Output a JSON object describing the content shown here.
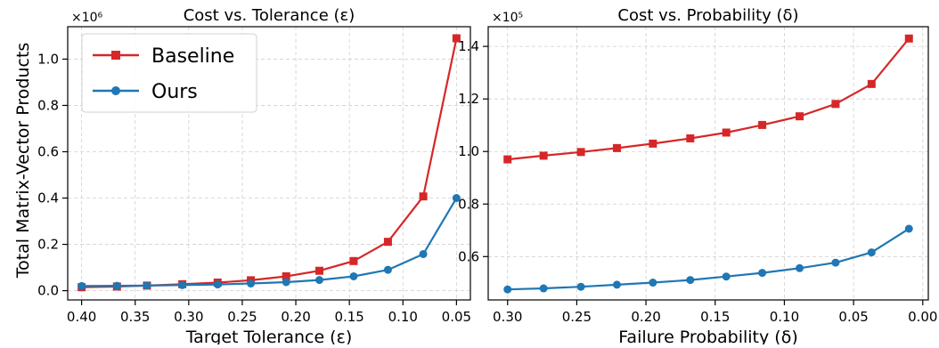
{
  "figure": {
    "ylabel": "Total Matrix-Vector Products"
  },
  "chart_data": [
    {
      "type": "line",
      "title": "Cost vs. Tolerance (ε)",
      "xlabel": "Target Tolerance (ε)",
      "ylabel": "Total Matrix-Vector Products",
      "x_axis_inverted": true,
      "xlim": [
        0.413,
        0.037
      ],
      "ylim": [
        -0.04,
        1.14
      ],
      "y_multiplier": "×10⁶",
      "x_ticks": [
        0.4,
        0.35,
        0.3,
        0.25,
        0.2,
        0.15,
        0.1,
        0.05
      ],
      "x_tick_labels": [
        "0.40",
        "0.35",
        "0.30",
        "0.25",
        "0.20",
        "0.15",
        "0.10",
        "0.05"
      ],
      "y_ticks": [
        0.0,
        0.2,
        0.4,
        0.6,
        0.8,
        1.0
      ],
      "y_tick_labels": [
        "0.0",
        "0.2",
        "0.4",
        "0.6",
        "0.8",
        "1.0"
      ],
      "grid": true,
      "legend": "top-left",
      "x": [
        0.4,
        0.367,
        0.339,
        0.306,
        0.273,
        0.242,
        0.209,
        0.178,
        0.146,
        0.114,
        0.081,
        0.05
      ],
      "series": [
        {
          "name": "Baseline",
          "color": "#d62728",
          "marker": "square",
          "values": [
            0.015,
            0.018,
            0.022,
            0.028,
            0.035,
            0.045,
            0.062,
            0.086,
            0.128,
            0.211,
            0.407,
            1.09
          ]
        },
        {
          "name": "Ours",
          "color": "#1f77b4",
          "marker": "circle",
          "values": [
            0.02,
            0.021,
            0.022,
            0.024,
            0.027,
            0.031,
            0.037,
            0.046,
            0.062,
            0.09,
            0.158,
            0.4
          ]
        }
      ]
    },
    {
      "type": "line",
      "title": "Cost vs. Probability (δ)",
      "xlabel": "Failure Probability (δ)",
      "ylabel": "",
      "x_axis_inverted": true,
      "xlim": [
        0.314,
        -0.004
      ],
      "ylim": [
        0.435,
        1.475
      ],
      "y_multiplier": "×10⁵",
      "x_ticks": [
        0.3,
        0.25,
        0.2,
        0.15,
        0.1,
        0.05,
        0.0
      ],
      "x_tick_labels": [
        "0.30",
        "0.25",
        "0.20",
        "0.15",
        "0.10",
        "0.05",
        "0.00"
      ],
      "y_ticks": [
        0.6,
        0.8,
        1.0,
        1.2,
        1.4
      ],
      "y_tick_labels": [
        "0.6",
        "0.8",
        "1.0",
        "1.2",
        "1.4"
      ],
      "grid": true,
      "legend": "none",
      "x": [
        0.3,
        0.274,
        0.247,
        0.221,
        0.195,
        0.168,
        0.142,
        0.116,
        0.089,
        0.063,
        0.037,
        0.01
      ],
      "series": [
        {
          "name": "Baseline",
          "color": "#d62728",
          "marker": "square",
          "values": [
            0.97,
            0.984,
            0.998,
            1.013,
            1.03,
            1.05,
            1.072,
            1.101,
            1.134,
            1.181,
            1.257,
            1.43
          ]
        },
        {
          "name": "Ours",
          "color": "#1f77b4",
          "marker": "circle",
          "values": [
            0.475,
            0.479,
            0.485,
            0.493,
            0.501,
            0.511,
            0.524,
            0.538,
            0.556,
            0.577,
            0.616,
            0.706
          ]
        }
      ]
    }
  ]
}
